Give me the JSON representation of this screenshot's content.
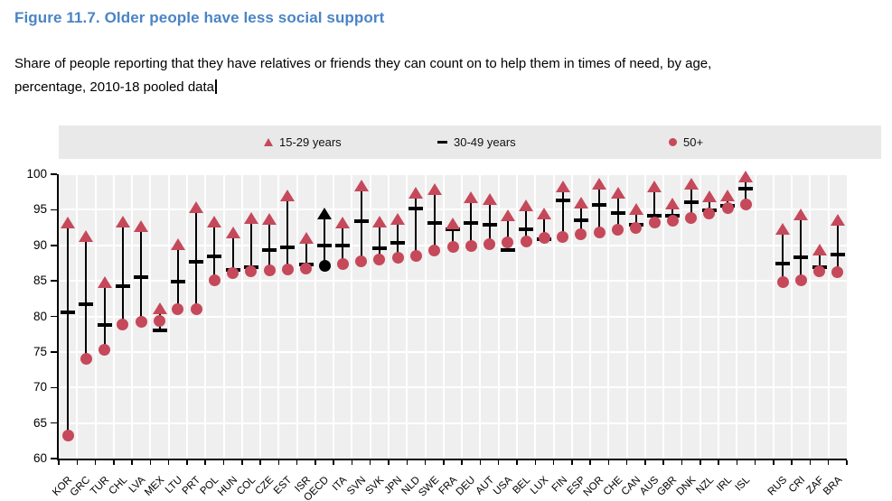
{
  "header": {
    "title": "Figure 11.7. Older people have less social support",
    "subtitle_line1": "Share of people reporting that they have relatives or friends they can count on to help them in times of need, by age,",
    "subtitle_line2": "percentage, 2010-18 pooled data"
  },
  "colors": {
    "title_blue": "#4a84c6",
    "series_red": "#c5495a",
    "series_black": "#000000",
    "plot_background": "#efefef",
    "legend_band_background": "#e9e9e9",
    "gridline": "#ffffff",
    "axis": "#000000"
  },
  "chart_data": {
    "type": "scatter",
    "title": "Figure 11.7. Older people have less social support",
    "ylabel": "",
    "xlabel": "",
    "ylim": [
      60,
      100
    ],
    "yticks": [
      60,
      65,
      70,
      75,
      80,
      85,
      90,
      95,
      100
    ],
    "grid": true,
    "legend_position": "top band",
    "series": [
      {
        "name": "15-29 years",
        "marker": "triangle",
        "color": "#c5495a"
      },
      {
        "name": "30-49 years",
        "marker": "dash",
        "color": "#000000"
      },
      {
        "name": "50+",
        "marker": "circle",
        "color": "#c5495a"
      }
    ],
    "highlight_category": "OECD",
    "highlight_color": "#000000",
    "group_gap_after": "ISL",
    "categories": [
      "KOR",
      "GRC",
      "TUR",
      "CHL",
      "LVA",
      "MEX",
      "LTU",
      "PRT",
      "POL",
      "HUN",
      "COL",
      "CZE",
      "EST",
      "ISR",
      "OECD",
      "ITA",
      "SVN",
      "SVK",
      "JPN",
      "NLD",
      "SWE",
      "FRA",
      "DEU",
      "AUT",
      "USA",
      "BEL",
      "LUX",
      "FIN",
      "ESP",
      "NOR",
      "CHE",
      "CAN",
      "AUS",
      "GBR",
      "DNK",
      "NZL",
      "IRL",
      "ISL",
      "RUS",
      "CRI",
      "ZAF",
      "BRA"
    ],
    "values": [
      [
        93.2,
        80.6,
        63.3
      ],
      [
        91.3,
        81.7,
        74.0
      ],
      [
        84.8,
        78.8,
        75.3
      ],
      [
        93.3,
        84.2,
        78.9
      ],
      [
        92.6,
        85.5,
        79.3
      ],
      [
        81.1,
        78.0,
        79.4
      ],
      [
        90.1,
        84.9,
        81.0
      ],
      [
        95.3,
        87.7,
        81.0
      ],
      [
        93.3,
        88.4,
        85.1
      ],
      [
        91.8,
        86.5,
        86.1
      ],
      [
        93.8,
        86.9,
        86.4
      ],
      [
        93.6,
        89.3,
        86.5
      ],
      [
        97.0,
        89.7,
        86.6
      ],
      [
        91.0,
        87.3,
        86.7
      ],
      [
        94.4,
        90.0,
        87.1
      ],
      [
        93.2,
        90.0,
        87.4
      ],
      [
        98.4,
        93.4,
        87.7
      ],
      [
        93.3,
        89.6,
        88.0
      ],
      [
        93.7,
        90.4,
        88.3
      ],
      [
        97.3,
        95.2,
        88.5
      ],
      [
        97.8,
        93.1,
        89.3
      ],
      [
        93.0,
        92.3,
        89.8
      ],
      [
        96.7,
        93.2,
        89.9
      ],
      [
        96.5,
        92.9,
        90.1
      ],
      [
        94.2,
        89.3,
        90.4
      ],
      [
        95.5,
        92.2,
        90.5
      ],
      [
        94.4,
        90.8,
        91.0
      ],
      [
        98.2,
        96.3,
        91.2
      ],
      [
        96.0,
        93.5,
        91.5
      ],
      [
        98.6,
        95.7,
        91.8
      ],
      [
        97.3,
        94.5,
        92.2
      ],
      [
        95.1,
        92.9,
        92.5
      ],
      [
        98.2,
        94.1,
        93.2
      ],
      [
        95.8,
        94.2,
        93.5
      ],
      [
        98.6,
        96.1,
        93.8
      ],
      [
        96.8,
        94.9,
        94.5
      ],
      [
        96.9,
        95.6,
        95.2
      ],
      [
        99.6,
        98.0,
        95.8
      ],
      [
        92.3,
        87.4,
        84.8
      ],
      [
        94.3,
        88.3,
        85.1
      ],
      [
        89.3,
        86.9,
        86.4
      ],
      [
        93.5,
        88.7,
        86.2
      ]
    ]
  }
}
